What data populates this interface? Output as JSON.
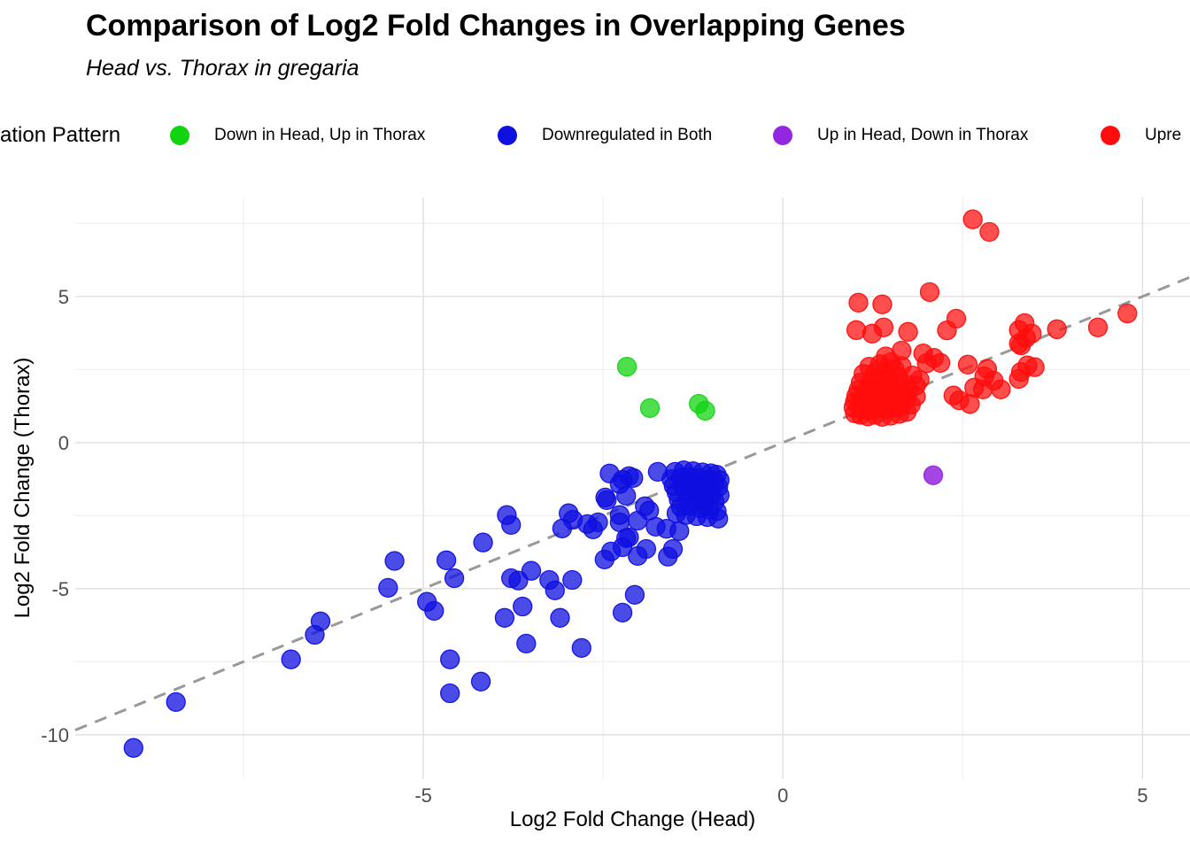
{
  "header": {
    "title": "Comparison of Log2 Fold Changes in Overlapping Genes",
    "subtitle": "Head vs. Thorax in gregaria"
  },
  "legend": {
    "title": "ation Pattern",
    "items": [
      {
        "label": "Down in Head, Up in Thorax",
        "color_key": "green"
      },
      {
        "label": "Downregulated in Both",
        "color_key": "blue"
      },
      {
        "label": "Up in Head, Down in Thorax",
        "color_key": "purple"
      },
      {
        "label": "Upre",
        "color_key": "red"
      }
    ]
  },
  "colors": {
    "green": "#11d411",
    "blue": "#0f0fe0",
    "purple": "#9326df",
    "red": "#ff0d0d",
    "dash_line": "#999999",
    "grid_major": "#e3e3e3",
    "grid_minor": "#efefef",
    "tick_text": "#4d4d4d"
  },
  "chart_data": {
    "type": "scatter",
    "title": "Comparison of Log2 Fold Changes in Overlapping Genes",
    "subtitle": "Head vs. Thorax in gregaria",
    "xlabel": "Log2 Fold Change (Head)",
    "ylabel": "Log2 Fold Change (Thorax)",
    "xlim": [
      -9.84,
      5.66
    ],
    "ylim": [
      -11.52,
      8.39
    ],
    "x_major_ticks": [
      -5,
      0,
      5
    ],
    "x_minor_ticks": [
      -7.5,
      -2.5,
      2.5
    ],
    "y_major_ticks": [
      -10,
      -5,
      0,
      5
    ],
    "y_minor_ticks": [
      -7.5,
      -2.5,
      2.5,
      7.5
    ],
    "grid": true,
    "legend_position": "top",
    "reference_line": {
      "style": "dashed",
      "slope": 1,
      "intercept": 0
    },
    "series": [
      {
        "name": "Down in Head, Up in Thorax",
        "color_key": "green",
        "points": [
          [
            -2.17,
            2.6
          ],
          [
            -1.85,
            1.18
          ],
          [
            -1.17,
            1.33
          ],
          [
            -1.08,
            1.09
          ]
        ]
      },
      {
        "name": "Downregulated in Both",
        "color_key": "blue",
        "points": [
          [
            -9.03,
            -10.45
          ],
          [
            -8.44,
            -8.88
          ],
          [
            -6.84,
            -7.42
          ],
          [
            -6.51,
            -6.58
          ],
          [
            -6.43,
            -6.12
          ],
          [
            -5.4,
            -4.05
          ],
          [
            -5.49,
            -4.97
          ],
          [
            -4.95,
            -5.45
          ],
          [
            -4.85,
            -5.76
          ],
          [
            -4.68,
            -4.03
          ],
          [
            -4.57,
            -4.64
          ],
          [
            -4.17,
            -3.42
          ],
          [
            -4.63,
            -7.42
          ],
          [
            -4.2,
            -8.18
          ],
          [
            -4.63,
            -8.58
          ],
          [
            -3.84,
            -2.48
          ],
          [
            -3.78,
            -2.82
          ],
          [
            -3.78,
            -4.64
          ],
          [
            -3.68,
            -4.72
          ],
          [
            -3.5,
            -4.39
          ],
          [
            -3.25,
            -4.7
          ],
          [
            -3.17,
            -5.06
          ],
          [
            -2.93,
            -4.7
          ],
          [
            -3.62,
            -5.61
          ],
          [
            -3.87,
            -6.0
          ],
          [
            -3.1,
            -6.0
          ],
          [
            -3.57,
            -6.88
          ],
          [
            -2.8,
            -7.03
          ],
          [
            -2.48,
            -4.0
          ],
          [
            -2.39,
            -3.73
          ],
          [
            -2.18,
            -3.27
          ],
          [
            -2.02,
            -3.88
          ],
          [
            -2.06,
            -5.21
          ],
          [
            -2.23,
            -5.82
          ],
          [
            -2.98,
            -2.42
          ],
          [
            -2.92,
            -2.64
          ],
          [
            -3.07,
            -2.94
          ],
          [
            -2.57,
            -2.73
          ],
          [
            -2.27,
            -2.48
          ],
          [
            -2.02,
            -2.67
          ],
          [
            -1.77,
            -2.88
          ],
          [
            -2.14,
            -3.24
          ],
          [
            -2.23,
            -3.58
          ],
          [
            -1.9,
            -3.64
          ],
          [
            -1.6,
            -3.9
          ],
          [
            -1.53,
            -3.64
          ],
          [
            -1.44,
            -3.03
          ],
          [
            -2.41,
            -1.06
          ],
          [
            -2.14,
            -1.15
          ],
          [
            -2.27,
            -1.42
          ],
          [
            -1.74,
            -1.0
          ],
          [
            -2.45,
            -1.97
          ],
          [
            -2.23,
            -1.27
          ],
          [
            -2.08,
            -1.21
          ],
          [
            -2.47,
            -1.88
          ],
          [
            -2.18,
            -1.82
          ],
          [
            -1.92,
            -2.18
          ],
          [
            -1.86,
            -2.33
          ],
          [
            -2.72,
            -2.79
          ],
          [
            -2.64,
            -2.97
          ],
          [
            -2.27,
            -2.73
          ],
          [
            -1.62,
            -2.95
          ],
          [
            -1.5,
            -1.0
          ],
          [
            -1.38,
            -0.95
          ],
          [
            -1.25,
            -0.98
          ],
          [
            -1.12,
            -1.02
          ],
          [
            -1.0,
            -1.05
          ],
          [
            -0.92,
            -1.1
          ],
          [
            -1.55,
            -1.25
          ],
          [
            -1.42,
            -1.2
          ],
          [
            -1.3,
            -1.18
          ],
          [
            -1.18,
            -1.22
          ],
          [
            -1.05,
            -1.28
          ],
          [
            -0.95,
            -1.35
          ],
          [
            -0.88,
            -1.28
          ],
          [
            -1.52,
            -1.48
          ],
          [
            -1.4,
            -1.45
          ],
          [
            -1.28,
            -1.42
          ],
          [
            -1.15,
            -1.5
          ],
          [
            -1.02,
            -1.55
          ],
          [
            -0.9,
            -1.52
          ],
          [
            -1.48,
            -1.7
          ],
          [
            -1.35,
            -1.68
          ],
          [
            -1.22,
            -1.72
          ],
          [
            -1.1,
            -1.78
          ],
          [
            -0.98,
            -1.75
          ],
          [
            -0.88,
            -1.8
          ],
          [
            -1.45,
            -1.95
          ],
          [
            -1.32,
            -1.92
          ],
          [
            -1.2,
            -2.0
          ],
          [
            -1.08,
            -2.05
          ],
          [
            -0.95,
            -2.02
          ],
          [
            -1.42,
            -2.2
          ],
          [
            -1.28,
            -2.18
          ],
          [
            -1.15,
            -2.25
          ],
          [
            -1.02,
            -2.3
          ],
          [
            -0.92,
            -2.35
          ],
          [
            -1.35,
            -2.48
          ],
          [
            -1.2,
            -2.52
          ],
          [
            -1.05,
            -2.55
          ],
          [
            -1.48,
            -2.42
          ],
          [
            -0.9,
            -2.6
          ]
        ]
      },
      {
        "name": "Up in Head, Down in Thorax",
        "color_key": "purple",
        "points": [
          [
            2.09,
            -1.12
          ]
        ]
      },
      {
        "name": "Upre",
        "color_key": "red",
        "points": [
          [
            2.64,
            7.64
          ],
          [
            2.87,
            7.21
          ],
          [
            2.04,
            5.15
          ],
          [
            1.05,
            4.79
          ],
          [
            1.38,
            4.73
          ],
          [
            4.79,
            4.42
          ],
          [
            4.38,
            3.94
          ],
          [
            3.81,
            3.88
          ],
          [
            3.36,
            4.09
          ],
          [
            3.28,
            3.85
          ],
          [
            3.46,
            3.73
          ],
          [
            3.28,
            3.39
          ],
          [
            2.41,
            4.24
          ],
          [
            2.28,
            3.84
          ],
          [
            1.02,
            3.85
          ],
          [
            1.24,
            3.73
          ],
          [
            1.4,
            3.94
          ],
          [
            1.74,
            3.79
          ],
          [
            3.4,
            2.64
          ],
          [
            3.5,
            2.58
          ],
          [
            3.31,
            2.42
          ],
          [
            3.28,
            2.18
          ],
          [
            2.84,
            2.52
          ],
          [
            2.8,
            2.27
          ],
          [
            2.93,
            2.12
          ],
          [
            2.66,
            1.88
          ],
          [
            2.78,
            1.82
          ],
          [
            3.03,
            1.82
          ],
          [
            2.57,
            2.67
          ],
          [
            2.37,
            1.61
          ],
          [
            2.19,
            2.73
          ],
          [
            3.38,
            3.58
          ],
          [
            3.31,
            3.33
          ],
          [
            2.45,
            1.45
          ],
          [
            2.6,
            1.32
          ],
          [
            1.95,
            3.05
          ],
          [
            2.1,
            2.9
          ],
          [
            1.43,
            2.95
          ],
          [
            1.65,
            3.15
          ],
          [
            2.0,
            2.72
          ],
          [
            1.0,
            1.0
          ],
          [
            1.08,
            0.95
          ],
          [
            1.18,
            0.9
          ],
          [
            1.28,
            0.95
          ],
          [
            1.38,
            0.88
          ],
          [
            1.5,
            0.92
          ],
          [
            1.62,
            0.98
          ],
          [
            1.72,
            1.05
          ],
          [
            0.98,
            1.2
          ],
          [
            1.08,
            1.15
          ],
          [
            1.2,
            1.12
          ],
          [
            1.3,
            1.18
          ],
          [
            1.42,
            1.15
          ],
          [
            1.55,
            1.2
          ],
          [
            1.65,
            1.25
          ],
          [
            1.78,
            1.3
          ],
          [
            1.0,
            1.4
          ],
          [
            1.1,
            1.38
          ],
          [
            1.22,
            1.35
          ],
          [
            1.35,
            1.42
          ],
          [
            1.48,
            1.45
          ],
          [
            1.6,
            1.48
          ],
          [
            1.72,
            1.52
          ],
          [
            1.85,
            1.58
          ],
          [
            1.02,
            1.6
          ],
          [
            1.12,
            1.58
          ],
          [
            1.25,
            1.62
          ],
          [
            1.38,
            1.65
          ],
          [
            1.5,
            1.68
          ],
          [
            1.62,
            1.72
          ],
          [
            1.75,
            1.78
          ],
          [
            1.05,
            1.8
          ],
          [
            1.18,
            1.85
          ],
          [
            1.3,
            1.88
          ],
          [
            1.45,
            1.9
          ],
          [
            1.58,
            1.95
          ],
          [
            1.7,
            2.0
          ],
          [
            1.08,
            2.05
          ],
          [
            1.22,
            2.1
          ],
          [
            1.35,
            2.15
          ],
          [
            1.48,
            2.2
          ],
          [
            1.6,
            2.25
          ],
          [
            1.12,
            2.35
          ],
          [
            1.28,
            2.4
          ],
          [
            1.42,
            2.45
          ],
          [
            1.55,
            2.52
          ],
          [
            1.2,
            2.6
          ],
          [
            1.35,
            2.68
          ],
          [
            1.5,
            2.75
          ],
          [
            1.65,
            2.62
          ],
          [
            1.8,
            2.3
          ],
          [
            1.9,
            2.15
          ],
          [
            1.85,
            1.95
          ]
        ]
      }
    ]
  }
}
